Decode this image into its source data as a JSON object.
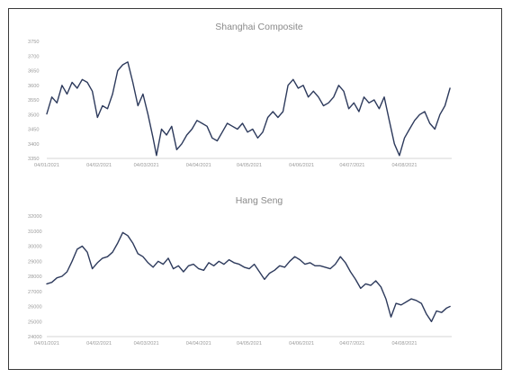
{
  "chart_data": [
    {
      "type": "line",
      "title": "Shanghai Composite",
      "xlabel": "",
      "ylabel": "",
      "ylim": [
        3350,
        3750
      ],
      "y_ticks": [
        "3750",
        "3700",
        "3650",
        "3600",
        "3550",
        "3500",
        "3450",
        "3400",
        "3350"
      ],
      "x_ticks": [
        "04/01/2021",
        "04/02/2021",
        "04/03/2021",
        "04/04/2021",
        "04/05/2021",
        "04/06/2021",
        "04/07/2021",
        "04/08/2021"
      ],
      "grid": false,
      "series": [
        {
          "color": "#2d3a5c",
          "values": [
            [
              "2021-01-04",
              3502
            ],
            [
              "2021-01-07",
              3560
            ],
            [
              "2021-01-10",
              3540
            ],
            [
              "2021-01-13",
              3600
            ],
            [
              "2021-01-16",
              3570
            ],
            [
              "2021-01-19",
              3610
            ],
            [
              "2021-01-22",
              3590
            ],
            [
              "2021-01-25",
              3620
            ],
            [
              "2021-01-28",
              3610
            ],
            [
              "2021-01-31",
              3580
            ],
            [
              "2021-02-03",
              3490
            ],
            [
              "2021-02-06",
              3530
            ],
            [
              "2021-02-09",
              3520
            ],
            [
              "2021-02-12",
              3570
            ],
            [
              "2021-02-15",
              3650
            ],
            [
              "2021-02-18",
              3670
            ],
            [
              "2021-02-21",
              3680
            ],
            [
              "2021-02-24",
              3610
            ],
            [
              "2021-02-27",
              3530
            ],
            [
              "2021-03-02",
              3570
            ],
            [
              "2021-03-05",
              3500
            ],
            [
              "2021-03-08",
              3420
            ],
            [
              "2021-03-10",
              3360
            ],
            [
              "2021-03-13",
              3450
            ],
            [
              "2021-03-16",
              3430
            ],
            [
              "2021-03-19",
              3460
            ],
            [
              "2021-03-22",
              3380
            ],
            [
              "2021-03-25",
              3400
            ],
            [
              "2021-03-28",
              3430
            ],
            [
              "2021-03-31",
              3450
            ],
            [
              "2021-04-03",
              3480
            ],
            [
              "2021-04-06",
              3470
            ],
            [
              "2021-04-09",
              3460
            ],
            [
              "2021-04-12",
              3420
            ],
            [
              "2021-04-15",
              3410
            ],
            [
              "2021-04-18",
              3440
            ],
            [
              "2021-04-21",
              3470
            ],
            [
              "2021-04-24",
              3460
            ],
            [
              "2021-04-27",
              3450
            ],
            [
              "2021-04-30",
              3470
            ],
            [
              "2021-05-03",
              3440
            ],
            [
              "2021-05-06",
              3450
            ],
            [
              "2021-05-09",
              3420
            ],
            [
              "2021-05-12",
              3440
            ],
            [
              "2021-05-15",
              3490
            ],
            [
              "2021-05-18",
              3510
            ],
            [
              "2021-05-21",
              3490
            ],
            [
              "2021-05-24",
              3510
            ],
            [
              "2021-05-27",
              3600
            ],
            [
              "2021-05-30",
              3620
            ],
            [
              "2021-06-02",
              3590
            ],
            [
              "2021-06-05",
              3600
            ],
            [
              "2021-06-08",
              3560
            ],
            [
              "2021-06-11",
              3580
            ],
            [
              "2021-06-14",
              3560
            ],
            [
              "2021-06-17",
              3530
            ],
            [
              "2021-06-20",
              3540
            ],
            [
              "2021-06-23",
              3560
            ],
            [
              "2021-06-26",
              3600
            ],
            [
              "2021-06-29",
              3580
            ],
            [
              "2021-07-02",
              3520
            ],
            [
              "2021-07-05",
              3540
            ],
            [
              "2021-07-08",
              3510
            ],
            [
              "2021-07-11",
              3560
            ],
            [
              "2021-07-14",
              3540
            ],
            [
              "2021-07-17",
              3550
            ],
            [
              "2021-07-20",
              3520
            ],
            [
              "2021-07-23",
              3560
            ],
            [
              "2021-07-26",
              3480
            ],
            [
              "2021-07-29",
              3400
            ],
            [
              "2021-08-01",
              3360
            ],
            [
              "2021-08-04",
              3420
            ],
            [
              "2021-08-07",
              3450
            ],
            [
              "2021-08-10",
              3480
            ],
            [
              "2021-08-13",
              3500
            ],
            [
              "2021-08-16",
              3510
            ],
            [
              "2021-08-19",
              3470
            ],
            [
              "2021-08-22",
              3450
            ],
            [
              "2021-08-25",
              3500
            ],
            [
              "2021-08-28",
              3530
            ],
            [
              "2021-08-31",
              3590
            ]
          ]
        }
      ]
    },
    {
      "type": "line",
      "title": "Hang Seng",
      "xlabel": "",
      "ylabel": "",
      "ylim": [
        24000,
        32000
      ],
      "y_ticks": [
        "32000",
        "31000",
        "30000",
        "29000",
        "28000",
        "27000",
        "26000",
        "25000",
        "24000"
      ],
      "x_ticks": [
        "04/01/2021",
        "04/02/2021",
        "04/03/2021",
        "04/04/2021",
        "04/05/2021",
        "04/06/2021",
        "04/07/2021",
        "04/08/2021"
      ],
      "grid": false,
      "series": [
        {
          "color": "#2d3a5c",
          "values": [
            [
              "2021-01-04",
              27500
            ],
            [
              "2021-01-07",
              27600
            ],
            [
              "2021-01-10",
              27900
            ],
            [
              "2021-01-13",
              28000
            ],
            [
              "2021-01-16",
              28300
            ],
            [
              "2021-01-19",
              29000
            ],
            [
              "2021-01-22",
              29800
            ],
            [
              "2021-01-25",
              30000
            ],
            [
              "2021-01-28",
              29600
            ],
            [
              "2021-01-31",
              28500
            ],
            [
              "2021-02-03",
              28900
            ],
            [
              "2021-02-06",
              29200
            ],
            [
              "2021-02-09",
              29300
            ],
            [
              "2021-02-12",
              29600
            ],
            [
              "2021-02-15",
              30200
            ],
            [
              "2021-02-18",
              30900
            ],
            [
              "2021-02-21",
              30700
            ],
            [
              "2021-02-24",
              30200
            ],
            [
              "2021-02-27",
              29500
            ],
            [
              "2021-03-02",
              29300
            ],
            [
              "2021-03-05",
              28900
            ],
            [
              "2021-03-08",
              28600
            ],
            [
              "2021-03-11",
              29000
            ],
            [
              "2021-03-14",
              28800
            ],
            [
              "2021-03-17",
              29200
            ],
            [
              "2021-03-20",
              28500
            ],
            [
              "2021-03-23",
              28700
            ],
            [
              "2021-03-26",
              28300
            ],
            [
              "2021-03-29",
              28700
            ],
            [
              "2021-04-01",
              28800
            ],
            [
              "2021-04-04",
              28500
            ],
            [
              "2021-04-07",
              28400
            ],
            [
              "2021-04-10",
              28900
            ],
            [
              "2021-04-13",
              28700
            ],
            [
              "2021-04-16",
              29000
            ],
            [
              "2021-04-19",
              28800
            ],
            [
              "2021-04-22",
              29100
            ],
            [
              "2021-04-25",
              28900
            ],
            [
              "2021-04-28",
              28800
            ],
            [
              "2021-05-01",
              28600
            ],
            [
              "2021-05-04",
              28500
            ],
            [
              "2021-05-07",
              28800
            ],
            [
              "2021-05-10",
              28300
            ],
            [
              "2021-05-13",
              27800
            ],
            [
              "2021-05-16",
              28200
            ],
            [
              "2021-05-19",
              28400
            ],
            [
              "2021-05-22",
              28700
            ],
            [
              "2021-05-25",
              28600
            ],
            [
              "2021-05-28",
              29000
            ],
            [
              "2021-05-31",
              29300
            ],
            [
              "2021-06-03",
              29100
            ],
            [
              "2021-06-06",
              28800
            ],
            [
              "2021-06-09",
              28900
            ],
            [
              "2021-06-12",
              28700
            ],
            [
              "2021-06-15",
              28700
            ],
            [
              "2021-06-18",
              28600
            ],
            [
              "2021-06-21",
              28500
            ],
            [
              "2021-06-24",
              28800
            ],
            [
              "2021-06-27",
              29300
            ],
            [
              "2021-06-30",
              28900
            ],
            [
              "2021-07-03",
              28300
            ],
            [
              "2021-07-06",
              27800
            ],
            [
              "2021-07-09",
              27200
            ],
            [
              "2021-07-12",
              27500
            ],
            [
              "2021-07-15",
              27400
            ],
            [
              "2021-07-18",
              27700
            ],
            [
              "2021-07-21",
              27300
            ],
            [
              "2021-07-24",
              26500
            ],
            [
              "2021-07-27",
              25300
            ],
            [
              "2021-07-30",
              26200
            ],
            [
              "2021-08-02",
              26100
            ],
            [
              "2021-08-05",
              26300
            ],
            [
              "2021-08-08",
              26500
            ],
            [
              "2021-08-11",
              26400
            ],
            [
              "2021-08-14",
              26200
            ],
            [
              "2021-08-17",
              25500
            ],
            [
              "2021-08-20",
              25000
            ],
            [
              "2021-08-23",
              25700
            ],
            [
              "2021-08-26",
              25600
            ],
            [
              "2021-08-29",
              25900
            ],
            [
              "2021-08-31",
              26000
            ]
          ]
        }
      ]
    }
  ]
}
